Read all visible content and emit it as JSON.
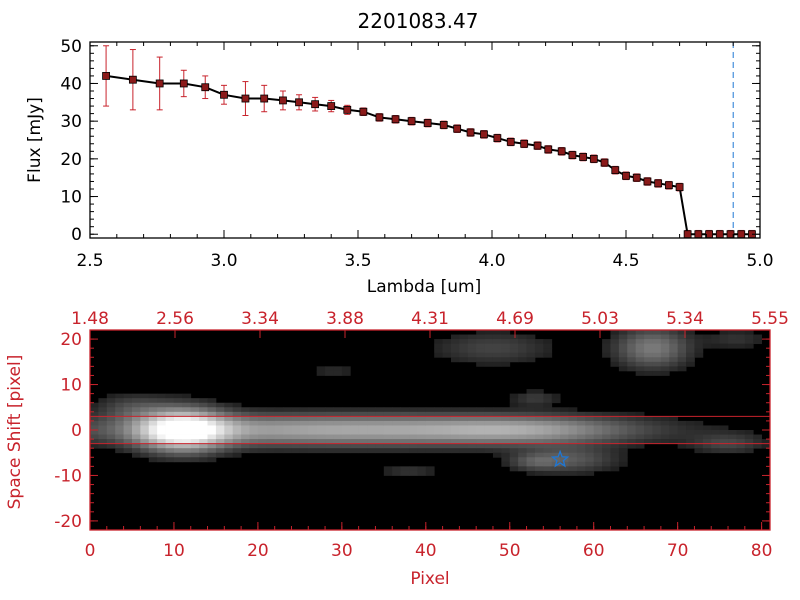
{
  "chart_data": [
    {
      "type": "line",
      "title": "2201083.47",
      "xlabel": "Lambda [um]",
      "ylabel": "Flux [mJy]",
      "xlim": [
        2.5,
        5.0
      ],
      "ylim": [
        -1,
        51
      ],
      "x_ticks": [
        "2.5",
        "3.0",
        "3.5",
        "4.0",
        "4.5",
        "5.0"
      ],
      "y_ticks": [
        "0",
        "10",
        "20",
        "30",
        "40",
        "50"
      ],
      "reference_line_x": 4.9,
      "series": [
        {
          "x": [
            2.56,
            2.66,
            2.76,
            2.85,
            2.93,
            3.0,
            3.08,
            3.15,
            3.22,
            3.28,
            3.34,
            3.4,
            3.46,
            3.52,
            3.58,
            3.64,
            3.7,
            3.76,
            3.82,
            3.87,
            3.92,
            3.97,
            4.02,
            4.07,
            4.12,
            4.17,
            4.21,
            4.26,
            4.3,
            4.34,
            4.38,
            4.42,
            4.46,
            4.5,
            4.54,
            4.58,
            4.62,
            4.66,
            4.7,
            4.73,
            4.77,
            4.81,
            4.85,
            4.89,
            4.93,
            4.97
          ],
          "y": [
            42,
            41,
            40,
            40,
            39,
            37,
            36,
            36,
            35.5,
            35,
            34.5,
            34,
            33,
            32.5,
            31,
            30.5,
            30,
            29.5,
            29,
            28,
            27,
            26.5,
            25.5,
            24.5,
            24,
            23.5,
            22.5,
            22,
            21,
            20.5,
            20,
            19,
            17,
            15.5,
            15,
            14,
            13.5,
            13,
            12.5,
            0,
            0,
            0,
            0,
            0,
            0,
            0
          ],
          "yerr": [
            8,
            8,
            7,
            3.5,
            3,
            2.5,
            4.5,
            3.5,
            2.5,
            2,
            1.8,
            1.5,
            1.2,
            1,
            1,
            1,
            1,
            1,
            1,
            1,
            1,
            1,
            1,
            1,
            1,
            1,
            1,
            1,
            1,
            1,
            1,
            1,
            1,
            1,
            1,
            1,
            1,
            1,
            1,
            1,
            1,
            1,
            1,
            1,
            1,
            1
          ]
        }
      ]
    },
    {
      "type": "heatmap",
      "xlabel": "Pixel",
      "ylabel": "Space Shift [pixel]",
      "xlim": [
        0,
        81
      ],
      "ylim": [
        -22,
        22
      ],
      "x_ticks": [
        "0",
        "10",
        "20",
        "30",
        "40",
        "50",
        "60",
        "70",
        "80"
      ],
      "y_ticks": [
        "-20",
        "-10",
        "0",
        "10",
        "20"
      ],
      "top_ticks": [
        "1.48",
        "2.56",
        "3.34",
        "3.88",
        "4.31",
        "4.69",
        "5.03",
        "5.34",
        "5.55"
      ],
      "aperture_lines_y": [
        3,
        -3
      ],
      "marker": {
        "x": 56,
        "y": -6.5,
        "shape": "star"
      },
      "sources": [
        {
          "x": 11,
          "y": 0,
          "sx": 3.5,
          "sy": 3,
          "amp": 1.0
        },
        {
          "x": 30,
          "y": 0,
          "sx": 20,
          "sy": 2.3,
          "amp": 0.55
        },
        {
          "x": 52,
          "y": 0,
          "sx": 8,
          "sy": 2,
          "amp": 0.28
        },
        {
          "x": 67,
          "y": 18,
          "sx": 3,
          "sy": 3,
          "amp": 0.35
        },
        {
          "x": 48,
          "y": 18,
          "sx": 5,
          "sy": 2.5,
          "amp": 0.15
        },
        {
          "x": 57,
          "y": -6.5,
          "sx": 4,
          "sy": 2,
          "amp": 0.22
        },
        {
          "x": 53,
          "y": -7,
          "sx": 2,
          "sy": 1.2,
          "amp": 0.15
        },
        {
          "x": 76,
          "y": -3,
          "sx": 3,
          "sy": 1.5,
          "amp": 0.15
        },
        {
          "x": 5,
          "y": 5,
          "sx": 3,
          "sy": 2,
          "amp": 0.15
        },
        {
          "x": 53,
          "y": 7,
          "sx": 2,
          "sy": 1.2,
          "amp": 0.12
        },
        {
          "x": 38,
          "y": -9,
          "sx": 2.5,
          "sy": 1.2,
          "amp": 0.1
        },
        {
          "x": 29,
          "y": 13,
          "sx": 2,
          "sy": 1,
          "amp": 0.08
        },
        {
          "x": 77,
          "y": 20,
          "sx": 2.5,
          "sy": 1.5,
          "amp": 0.1
        }
      ]
    }
  ],
  "colors": {
    "line": "#000000",
    "errorbar": "#c8232c",
    "marker_fill": "#8b1a1a",
    "bottom_axes": "#c8232c",
    "reference_line": "#1f77d4",
    "star": "#1f77d4"
  }
}
